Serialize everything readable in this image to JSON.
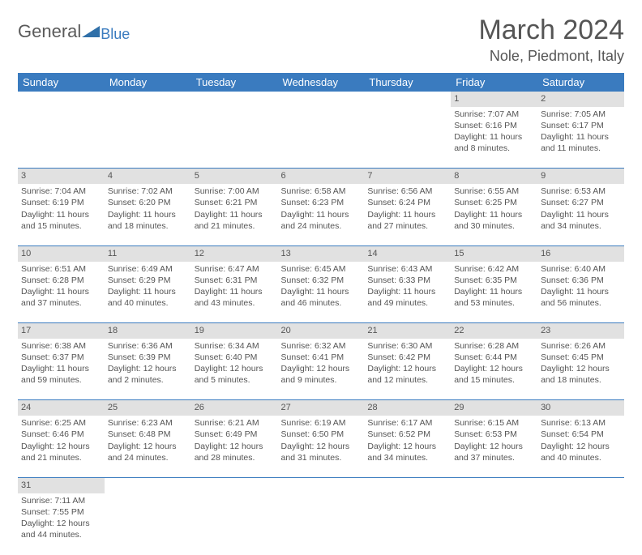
{
  "logo": {
    "text1": "General",
    "text2": "Blue"
  },
  "title": "March 2024",
  "location": "Nole, Piedmont, Italy",
  "colors": {
    "header_bg": "#3a7bbf",
    "daynum_bg": "#e1e1e1",
    "row_border": "#3a7bbf",
    "text": "#555555"
  },
  "weekdays": [
    "Sunday",
    "Monday",
    "Tuesday",
    "Wednesday",
    "Thursday",
    "Friday",
    "Saturday"
  ],
  "weeks": [
    [
      null,
      null,
      null,
      null,
      null,
      {
        "n": "1",
        "sr": "Sunrise: 7:07 AM",
        "ss": "Sunset: 6:16 PM",
        "dl": "Daylight: 11 hours and 8 minutes."
      },
      {
        "n": "2",
        "sr": "Sunrise: 7:05 AM",
        "ss": "Sunset: 6:17 PM",
        "dl": "Daylight: 11 hours and 11 minutes."
      }
    ],
    [
      {
        "n": "3",
        "sr": "Sunrise: 7:04 AM",
        "ss": "Sunset: 6:19 PM",
        "dl": "Daylight: 11 hours and 15 minutes."
      },
      {
        "n": "4",
        "sr": "Sunrise: 7:02 AM",
        "ss": "Sunset: 6:20 PM",
        "dl": "Daylight: 11 hours and 18 minutes."
      },
      {
        "n": "5",
        "sr": "Sunrise: 7:00 AM",
        "ss": "Sunset: 6:21 PM",
        "dl": "Daylight: 11 hours and 21 minutes."
      },
      {
        "n": "6",
        "sr": "Sunrise: 6:58 AM",
        "ss": "Sunset: 6:23 PM",
        "dl": "Daylight: 11 hours and 24 minutes."
      },
      {
        "n": "7",
        "sr": "Sunrise: 6:56 AM",
        "ss": "Sunset: 6:24 PM",
        "dl": "Daylight: 11 hours and 27 minutes."
      },
      {
        "n": "8",
        "sr": "Sunrise: 6:55 AM",
        "ss": "Sunset: 6:25 PM",
        "dl": "Daylight: 11 hours and 30 minutes."
      },
      {
        "n": "9",
        "sr": "Sunrise: 6:53 AM",
        "ss": "Sunset: 6:27 PM",
        "dl": "Daylight: 11 hours and 34 minutes."
      }
    ],
    [
      {
        "n": "10",
        "sr": "Sunrise: 6:51 AM",
        "ss": "Sunset: 6:28 PM",
        "dl": "Daylight: 11 hours and 37 minutes."
      },
      {
        "n": "11",
        "sr": "Sunrise: 6:49 AM",
        "ss": "Sunset: 6:29 PM",
        "dl": "Daylight: 11 hours and 40 minutes."
      },
      {
        "n": "12",
        "sr": "Sunrise: 6:47 AM",
        "ss": "Sunset: 6:31 PM",
        "dl": "Daylight: 11 hours and 43 minutes."
      },
      {
        "n": "13",
        "sr": "Sunrise: 6:45 AM",
        "ss": "Sunset: 6:32 PM",
        "dl": "Daylight: 11 hours and 46 minutes."
      },
      {
        "n": "14",
        "sr": "Sunrise: 6:43 AM",
        "ss": "Sunset: 6:33 PM",
        "dl": "Daylight: 11 hours and 49 minutes."
      },
      {
        "n": "15",
        "sr": "Sunrise: 6:42 AM",
        "ss": "Sunset: 6:35 PM",
        "dl": "Daylight: 11 hours and 53 minutes."
      },
      {
        "n": "16",
        "sr": "Sunrise: 6:40 AM",
        "ss": "Sunset: 6:36 PM",
        "dl": "Daylight: 11 hours and 56 minutes."
      }
    ],
    [
      {
        "n": "17",
        "sr": "Sunrise: 6:38 AM",
        "ss": "Sunset: 6:37 PM",
        "dl": "Daylight: 11 hours and 59 minutes."
      },
      {
        "n": "18",
        "sr": "Sunrise: 6:36 AM",
        "ss": "Sunset: 6:39 PM",
        "dl": "Daylight: 12 hours and 2 minutes."
      },
      {
        "n": "19",
        "sr": "Sunrise: 6:34 AM",
        "ss": "Sunset: 6:40 PM",
        "dl": "Daylight: 12 hours and 5 minutes."
      },
      {
        "n": "20",
        "sr": "Sunrise: 6:32 AM",
        "ss": "Sunset: 6:41 PM",
        "dl": "Daylight: 12 hours and 9 minutes."
      },
      {
        "n": "21",
        "sr": "Sunrise: 6:30 AM",
        "ss": "Sunset: 6:42 PM",
        "dl": "Daylight: 12 hours and 12 minutes."
      },
      {
        "n": "22",
        "sr": "Sunrise: 6:28 AM",
        "ss": "Sunset: 6:44 PM",
        "dl": "Daylight: 12 hours and 15 minutes."
      },
      {
        "n": "23",
        "sr": "Sunrise: 6:26 AM",
        "ss": "Sunset: 6:45 PM",
        "dl": "Daylight: 12 hours and 18 minutes."
      }
    ],
    [
      {
        "n": "24",
        "sr": "Sunrise: 6:25 AM",
        "ss": "Sunset: 6:46 PM",
        "dl": "Daylight: 12 hours and 21 minutes."
      },
      {
        "n": "25",
        "sr": "Sunrise: 6:23 AM",
        "ss": "Sunset: 6:48 PM",
        "dl": "Daylight: 12 hours and 24 minutes."
      },
      {
        "n": "26",
        "sr": "Sunrise: 6:21 AM",
        "ss": "Sunset: 6:49 PM",
        "dl": "Daylight: 12 hours and 28 minutes."
      },
      {
        "n": "27",
        "sr": "Sunrise: 6:19 AM",
        "ss": "Sunset: 6:50 PM",
        "dl": "Daylight: 12 hours and 31 minutes."
      },
      {
        "n": "28",
        "sr": "Sunrise: 6:17 AM",
        "ss": "Sunset: 6:52 PM",
        "dl": "Daylight: 12 hours and 34 minutes."
      },
      {
        "n": "29",
        "sr": "Sunrise: 6:15 AM",
        "ss": "Sunset: 6:53 PM",
        "dl": "Daylight: 12 hours and 37 minutes."
      },
      {
        "n": "30",
        "sr": "Sunrise: 6:13 AM",
        "ss": "Sunset: 6:54 PM",
        "dl": "Daylight: 12 hours and 40 minutes."
      }
    ],
    [
      {
        "n": "31",
        "sr": "Sunrise: 7:11 AM",
        "ss": "Sunset: 7:55 PM",
        "dl": "Daylight: 12 hours and 44 minutes."
      },
      null,
      null,
      null,
      null,
      null,
      null
    ]
  ]
}
